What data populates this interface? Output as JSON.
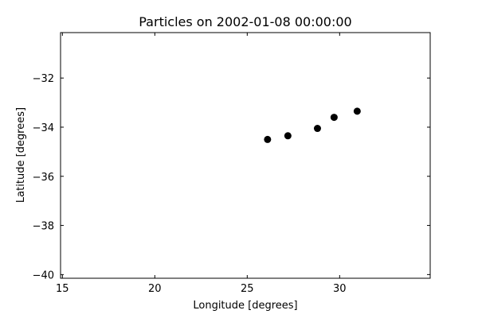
{
  "chart_data": {
    "type": "scatter",
    "title": "Particles on 2002-01-08 00:00:00",
    "xlabel": "Longitude [degrees]",
    "ylabel": "Latitude [degrees]",
    "xlim": [
      14.9,
      34.9
    ],
    "ylim": [
      -40.15,
      -30.15
    ],
    "xticks": [
      15,
      20,
      25,
      30
    ],
    "yticks": [
      -32,
      -34,
      -36,
      -38,
      -40
    ],
    "xtick_labels": [
      "15",
      "20",
      "25",
      "30"
    ],
    "ytick_labels": [
      "−32",
      "−34",
      "−36",
      "−38",
      "−40"
    ],
    "grid": false,
    "marker_color": "#000000",
    "points": [
      {
        "x": 26.1,
        "y": -34.5
      },
      {
        "x": 27.2,
        "y": -34.35
      },
      {
        "x": 28.8,
        "y": -34.05
      },
      {
        "x": 29.7,
        "y": -33.6
      },
      {
        "x": 30.95,
        "y": -33.35
      }
    ]
  }
}
